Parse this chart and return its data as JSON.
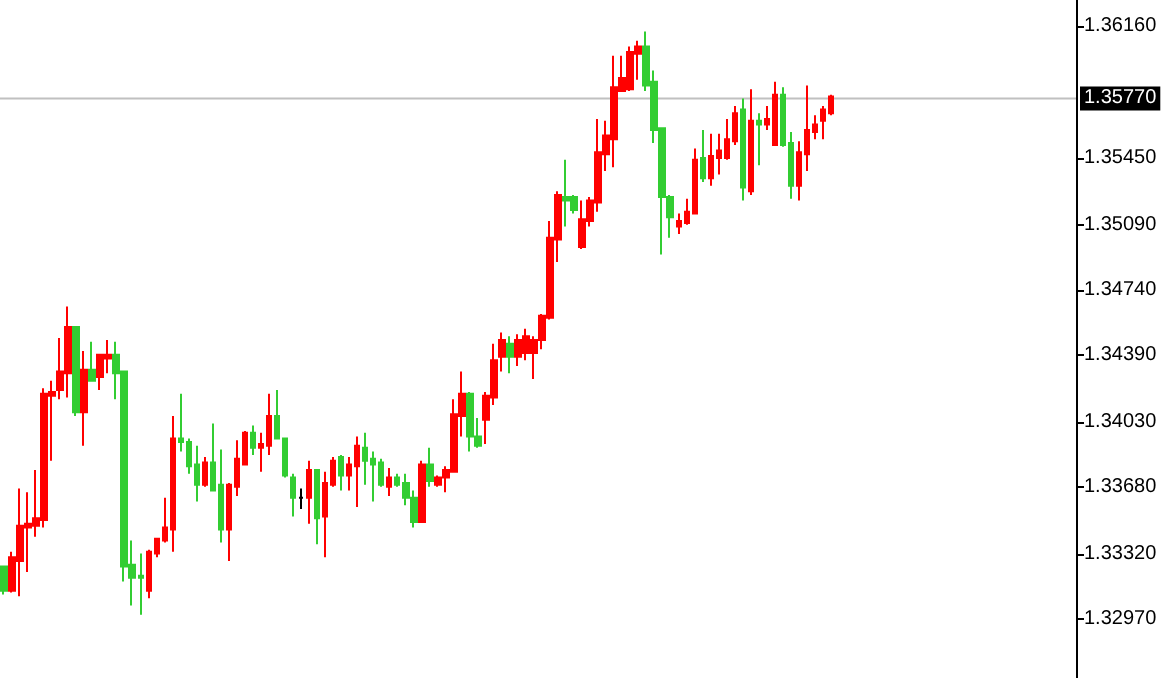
{
  "chart_data": {
    "type": "candlestick",
    "categories": [
      null,
      null,
      null,
      null,
      null,
      null,
      null,
      null,
      null,
      null,
      null,
      null,
      null,
      null,
      null,
      null,
      null,
      null,
      null,
      null,
      null,
      null,
      null,
      null,
      null,
      null,
      null,
      null,
      null,
      null,
      null,
      null,
      null,
      null,
      null,
      null,
      null,
      null,
      null,
      null,
      null,
      null,
      null,
      null,
      null,
      null,
      null,
      null,
      null,
      null,
      null,
      null,
      null,
      null,
      null,
      null,
      null,
      null,
      null,
      null,
      null,
      null,
      null,
      null,
      null,
      null,
      null,
      null,
      null,
      null,
      null,
      null,
      null,
      null,
      null,
      null,
      null,
      null,
      null,
      null,
      null,
      null,
      null,
      null,
      null,
      null,
      null,
      null,
      null,
      null,
      null,
      null,
      null,
      null,
      null,
      null,
      null,
      null,
      null,
      null,
      null,
      null,
      null,
      null,
      null,
      null,
      null,
      null,
      null,
      null,
      null,
      null,
      null,
      null,
      null,
      null,
      null,
      null,
      null,
      null,
      null,
      null,
      null,
      null,
      null,
      null,
      null,
      null,
      null,
      null,
      null,
      null,
      null,
      null
    ],
    "ohlc": [
      [
        1.3325,
        1.3325,
        1.331,
        1.3312
      ],
      [
        1.3312,
        1.3333,
        1.3311,
        1.333
      ],
      [
        1.3328,
        1.3367,
        1.3309,
        1.3347
      ],
      [
        1.3346,
        1.3365,
        1.3322,
        1.3348
      ],
      [
        1.3347,
        1.3377,
        1.3341,
        1.3351
      ],
      [
        1.335,
        1.3421,
        1.3346,
        1.3418
      ],
      [
        1.3417,
        1.3425,
        1.3382,
        1.3419
      ],
      [
        1.342,
        1.3448,
        1.3415,
        1.343
      ],
      [
        1.3429,
        1.3465,
        1.3416,
        1.3454
      ],
      [
        1.3454,
        1.3454,
        1.3406,
        1.3408
      ],
      [
        1.3408,
        1.3441,
        1.339,
        1.3431
      ],
      [
        1.3431,
        1.3446,
        1.3425,
        1.3425
      ],
      [
        1.3427,
        1.3439,
        1.342,
        1.3439
      ],
      [
        1.3437,
        1.3447,
        1.3429,
        1.3439
      ],
      [
        1.3439,
        1.3446,
        1.3415,
        1.3429
      ],
      [
        1.343,
        1.343,
        1.3317,
        1.3325
      ],
      [
        1.3326,
        1.3339,
        1.3304,
        1.3319
      ],
      [
        1.332,
        1.3332,
        1.3299,
        1.3319
      ],
      [
        1.3312,
        1.3334,
        1.3308,
        1.3333
      ],
      [
        1.3332,
        1.334,
        1.333,
        1.334
      ],
      [
        1.3339,
        1.3362,
        1.3338,
        1.3346
      ],
      [
        1.3345,
        1.3406,
        1.3333,
        1.3394
      ],
      [
        1.3394,
        1.3418,
        1.3387,
        1.3392
      ],
      [
        1.3392,
        1.3394,
        1.3375,
        1.3379
      ],
      [
        1.338,
        1.339,
        1.336,
        1.3369
      ],
      [
        1.3369,
        1.3384,
        1.3368,
        1.3381
      ],
      [
        1.3381,
        1.3402,
        1.3366,
        1.3366
      ],
      [
        1.3369,
        1.3388,
        1.3338,
        1.3345
      ],
      [
        1.3345,
        1.337,
        1.3328,
        1.3369
      ],
      [
        1.3368,
        1.3393,
        1.3363,
        1.3383
      ],
      [
        1.338,
        1.3398,
        1.338,
        1.3397
      ],
      [
        1.3397,
        1.3401,
        1.3385,
        1.3389
      ],
      [
        1.3389,
        1.3397,
        1.3376,
        1.3391
      ],
      [
        1.339,
        1.3418,
        1.3385,
        1.3406
      ],
      [
        1.3406,
        1.342,
        1.3394,
        1.3394
      ],
      [
        1.3394,
        1.3394,
        1.3373,
        1.3374
      ],
      [
        1.3373,
        1.3375,
        1.3352,
        1.3362
      ],
      [
        1.3362,
        1.3367,
        1.3356,
        1.3362
      ],
      [
        1.3362,
        1.3382,
        1.3348,
        1.3377
      ],
      [
        1.3377,
        1.3377,
        1.3337,
        1.3351
      ],
      [
        1.3352,
        1.3376,
        1.333,
        1.337
      ],
      [
        1.3369,
        1.3384,
        1.3368,
        1.3382
      ],
      [
        1.3384,
        1.3385,
        1.3366,
        1.3374
      ],
      [
        1.3374,
        1.3384,
        1.3366,
        1.338
      ],
      [
        1.3379,
        1.3395,
        1.3357,
        1.339
      ],
      [
        1.3389,
        1.3397,
        1.3369,
        1.3382
      ],
      [
        1.3383,
        1.3387,
        1.336,
        1.338
      ],
      [
        1.3381,
        1.3383,
        1.3368,
        1.3369
      ],
      [
        1.3368,
        1.3378,
        1.3363,
        1.3373
      ],
      [
        1.3373,
        1.3375,
        1.3368,
        1.3369
      ],
      [
        1.337,
        1.3375,
        1.3358,
        1.3362
      ],
      [
        1.3362,
        1.3366,
        1.3346,
        1.3349
      ],
      [
        1.3349,
        1.3382,
        1.3349,
        1.338
      ],
      [
        1.338,
        1.3389,
        1.3368,
        1.3371
      ],
      [
        1.3369,
        1.3374,
        1.3368,
        1.3373
      ],
      [
        1.3373,
        1.3379,
        1.3365,
        1.3377
      ],
      [
        1.3376,
        1.3415,
        1.3376,
        1.3407
      ],
      [
        1.3406,
        1.343,
        1.3395,
        1.3418
      ],
      [
        1.3418,
        1.3419,
        1.3387,
        1.3395
      ],
      [
        1.3395,
        1.3405,
        1.3389,
        1.339
      ],
      [
        1.3404,
        1.3419,
        1.3391,
        1.3417
      ],
      [
        1.3416,
        1.3445,
        1.3412,
        1.3436
      ],
      [
        1.3438,
        1.3451,
        1.343,
        1.3447
      ],
      [
        1.3445,
        1.3449,
        1.3429,
        1.3438
      ],
      [
        1.3438,
        1.345,
        1.3433,
        1.3447
      ],
      [
        1.344,
        1.3453,
        1.3436,
        1.3449
      ],
      [
        1.344,
        1.3449,
        1.3426,
        1.3447
      ],
      [
        1.3447,
        1.3461,
        1.3442,
        1.346
      ],
      [
        1.3459,
        1.3511,
        1.3458,
        1.3502
      ],
      [
        1.3501,
        1.3527,
        1.3489,
        1.3525
      ],
      [
        1.3524,
        1.3544,
        1.3508,
        1.3522
      ],
      [
        1.3524,
        1.3525,
        1.3515,
        1.3517
      ],
      [
        1.3497,
        1.3522,
        1.3496,
        1.3512
      ],
      [
        1.3511,
        1.3524,
        1.3508,
        1.3522
      ],
      [
        1.3521,
        1.3566,
        1.3516,
        1.3548
      ],
      [
        1.3547,
        1.3565,
        1.3538,
        1.3557
      ],
      [
        1.3555,
        1.36,
        1.354,
        1.3583
      ],
      [
        1.3581,
        1.36,
        1.3581,
        1.3588
      ],
      [
        1.3582,
        1.3605,
        1.3581,
        1.3602
      ],
      [
        1.3601,
        1.3608,
        1.3587,
        1.3605
      ],
      [
        1.3605,
        1.3613,
        1.3581,
        1.3584
      ],
      [
        1.3586,
        1.3592,
        1.3553,
        1.356
      ],
      [
        1.3561,
        1.3561,
        1.3493,
        1.3524
      ],
      [
        1.3524,
        1.3525,
        1.3502,
        1.3513
      ],
      [
        1.3508,
        1.3515,
        1.3504,
        1.3511
      ],
      [
        1.351,
        1.3523,
        1.3509,
        1.3516
      ],
      [
        1.3515,
        1.355,
        1.3515,
        1.3544
      ],
      [
        1.3545,
        1.356,
        1.3532,
        1.3534
      ],
      [
        1.3534,
        1.3558,
        1.353,
        1.3546
      ],
      [
        1.3545,
        1.3558,
        1.3536,
        1.3549
      ],
      [
        1.3545,
        1.3566,
        1.3544,
        1.3555
      ],
      [
        1.3554,
        1.3573,
        1.3552,
        1.3569
      ],
      [
        1.3571,
        1.3577,
        1.3522,
        1.3529
      ],
      [
        1.3527,
        1.3582,
        1.3525,
        1.3565
      ],
      [
        1.3565,
        1.3569,
        1.3541,
        1.3563
      ],
      [
        1.3563,
        1.3573,
        1.356,
        1.3566
      ],
      [
        1.3552,
        1.3586,
        1.3552,
        1.3579
      ],
      [
        1.3579,
        1.3583,
        1.3551,
        1.3552
      ],
      [
        1.3553,
        1.3559,
        1.3523,
        1.353
      ],
      [
        1.353,
        1.3554,
        1.3522,
        1.3548
      ],
      [
        1.3547,
        1.3584,
        1.3538,
        1.356
      ],
      [
        1.3559,
        1.3568,
        1.3555,
        1.3563
      ],
      [
        1.3565,
        1.3573,
        1.3555,
        1.3571
      ],
      [
        1.3569,
        1.3579,
        1.3568,
        1.3578
      ],
      null,
      null,
      null,
      null,
      null,
      null,
      null,
      null,
      null,
      null,
      null,
      null,
      null,
      null,
      null,
      null,
      null,
      null,
      null,
      null,
      null,
      null,
      null,
      null,
      null,
      null,
      null,
      null,
      null,
      null
    ],
    "colors": [
      "#32cd32",
      "#ff0000",
      "#ff0000",
      "#ff0000",
      "#ff0000",
      "#ff0000",
      "#ff0000",
      "#ff0000",
      "#ff0000",
      "#32cd32",
      "#ff0000",
      "#32cd32",
      "#ff0000",
      "#ff0000",
      "#32cd32",
      "#32cd32",
      "#32cd32",
      "#32cd32",
      "#ff0000",
      "#ff0000",
      "#ff0000",
      "#ff0000",
      "#32cd32",
      "#32cd32",
      "#32cd32",
      "#ff0000",
      "#32cd32",
      "#32cd32",
      "#ff0000",
      "#ff0000",
      "#ff0000",
      "#32cd32",
      "#ff0000",
      "#ff0000",
      "#32cd32",
      "#32cd32",
      "#32cd32",
      "#000000",
      "#ff0000",
      "#32cd32",
      "#ff0000",
      "#ff0000",
      "#32cd32",
      "#ff0000",
      "#ff0000",
      "#32cd32",
      "#32cd32",
      "#32cd32",
      "#ff0000",
      "#32cd32",
      "#32cd32",
      "#32cd32",
      "#ff0000",
      "#32cd32",
      "#ff0000",
      "#ff0000",
      "#ff0000",
      "#ff0000",
      "#32cd32",
      "#32cd32",
      "#ff0000",
      "#ff0000",
      "#ff0000",
      "#32cd32",
      "#ff0000",
      "#ff0000",
      "#ff0000",
      "#ff0000",
      "#ff0000",
      "#ff0000",
      "#32cd32",
      "#32cd32",
      "#ff0000",
      "#ff0000",
      "#ff0000",
      "#ff0000",
      "#ff0000",
      "#ff0000",
      "#ff0000",
      "#ff0000",
      "#32cd32",
      "#32cd32",
      "#32cd32",
      "#32cd32",
      "#ff0000",
      "#ff0000",
      "#ff0000",
      "#32cd32",
      "#ff0000",
      "#ff0000",
      "#ff0000",
      "#ff0000",
      "#32cd32",
      "#ff0000",
      "#32cd32",
      "#ff0000",
      "#ff0000",
      "#32cd32",
      "#32cd32",
      "#ff0000",
      "#ff0000",
      "#ff0000",
      "#ff0000",
      "#ff0000",
      null,
      null,
      null,
      null,
      null,
      null,
      null,
      null,
      null,
      null,
      null,
      null,
      null,
      null,
      null,
      null,
      null,
      null,
      null,
      null,
      null,
      null,
      null,
      null,
      null,
      null,
      null,
      null,
      null,
      null
    ],
    "ylim": [
      1.3265,
      1.363
    ],
    "yticks": [
      {
        "value": 1.3616,
        "label": "1.36160"
      },
      {
        "value": 1.3545,
        "label": "1.35450"
      },
      {
        "value": 1.3509,
        "label": "1.35090"
      },
      {
        "value": 1.3474,
        "label": "1.34740"
      },
      {
        "value": 1.3439,
        "label": "1.34390"
      },
      {
        "value": 1.3403,
        "label": "1.34030"
      },
      {
        "value": 1.3368,
        "label": "1.33680"
      },
      {
        "value": 1.3332,
        "label": "1.33320"
      },
      {
        "value": 1.3297,
        "label": "1.32970"
      }
    ],
    "ref_lines": [
      {
        "axis": "y",
        "value": 1.3577,
        "label": "1.35770",
        "color": "#c0c0c0"
      }
    ],
    "tick_labels": "y"
  }
}
